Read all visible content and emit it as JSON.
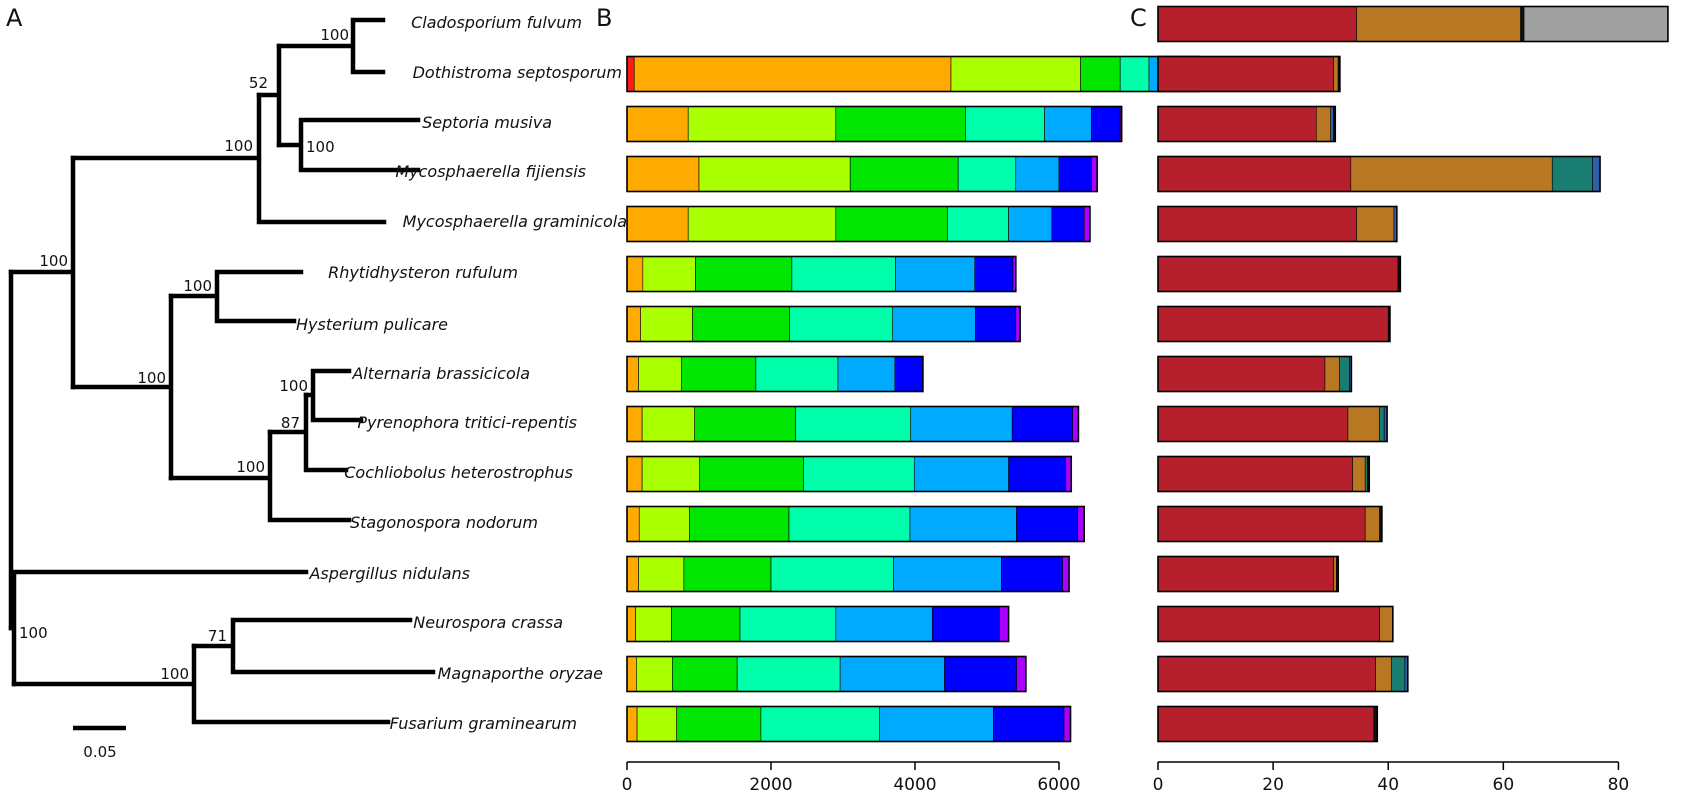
{
  "panels": {
    "a": "A",
    "b": "B",
    "c": "C"
  },
  "scale_bar": {
    "label": "0.05"
  },
  "species": [
    "Cladosporium fulvum",
    "Dothistroma septosporum",
    "Septoria musiva",
    "Mycosphaerella fijiensis",
    "Mycosphaerella graminicola",
    "Rhytidhysteron rufulum",
    "Hysterium pulicare",
    "Alternaria brassicicola",
    "Pyrenophora tritici-repentis",
    "Cochliobolus heterostrophus",
    "Stagonospora nodorum",
    "Aspergillus nidulans",
    "Neurospora crassa",
    "Magnaporthe oryzae",
    "Fusarium graminearum"
  ],
  "bootstrap_values": [
    "100",
    "52",
    "100",
    "100",
    "100",
    "100",
    "100",
    "100",
    "87",
    "100",
    "100",
    "71",
    "100"
  ],
  "chart_data": [
    {
      "type": "bar",
      "orientation": "horizontal",
      "stacked": true,
      "panel": "B",
      "categories": [
        "Cladosporium fulvum",
        "Dothistroma septosporum",
        "Septoria musiva",
        "Mycosphaerella fijiensis",
        "Mycosphaerella graminicola",
        "Rhytidhysteron rufulum",
        "Hysterium pulicare",
        "Alternaria brassicicola",
        "Pyrenophora tritici-repentis",
        "Cochliobolus heterostrophus",
        "Stagonospora nodorum",
        "Aspergillus nidulans",
        "Neurospora crassa",
        "Magnaporthe oryzae",
        "Fusarium graminearum"
      ],
      "series_colors": [
        "#ff1a1a",
        "#ffaa00",
        "#aaff00",
        "#00e600",
        "#00ffaa",
        "#00aaff",
        "#0000ff",
        "#aa00ff"
      ],
      "values": [
        null,
        [
          100,
          4400,
          1800,
          550,
          400,
          350,
          350,
          0
        ],
        [
          0,
          850,
          2050,
          1800,
          1100,
          650,
          400,
          20
        ],
        [
          0,
          1000,
          2100,
          1500,
          800,
          600,
          450,
          80
        ],
        [
          0,
          850,
          2050,
          1550,
          850,
          600,
          450,
          80
        ],
        [
          0,
          220,
          730,
          1340,
          1440,
          1100,
          530,
          40
        ],
        [
          0,
          190,
          720,
          1350,
          1430,
          1150,
          560,
          60
        ],
        [
          0,
          160,
          600,
          1030,
          1140,
          790,
          390,
          0
        ],
        [
          0,
          210,
          730,
          1400,
          1600,
          1410,
          840,
          80
        ],
        [
          0,
          210,
          800,
          1440,
          1540,
          1310,
          790,
          80
        ],
        [
          0,
          170,
          700,
          1380,
          1680,
          1480,
          850,
          90
        ],
        [
          0,
          160,
          630,
          1210,
          1700,
          1500,
          850,
          90
        ],
        [
          0,
          120,
          500,
          950,
          1330,
          1340,
          930,
          130
        ],
        [
          0,
          130,
          500,
          900,
          1430,
          1450,
          1000,
          130
        ],
        [
          0,
          140,
          550,
          1170,
          1650,
          1580,
          980,
          90
        ]
      ],
      "xlim": [
        0,
        7000
      ],
      "xticks": [
        "0",
        "2000",
        "4000",
        "6000"
      ]
    },
    {
      "type": "bar",
      "orientation": "horizontal",
      "stacked": true,
      "panel": "C",
      "categories": [
        "Cladosporium fulvum",
        "Dothistroma septosporum",
        "Septoria musiva",
        "Mycosphaerella fijiensis",
        "Mycosphaerella graminicola",
        "Rhytidhysteron rufulum",
        "Hysterium pulicare",
        "Alternaria brassicicola",
        "Pyrenophora tritici-repentis",
        "Cochliobolus heterostrophus",
        "Stagonospora nodorum",
        "Aspergillus nidulans",
        "Neurospora crassa",
        "Magnaporthe oryzae",
        "Fusarium graminearum"
      ],
      "series_colors": [
        "#b5202c",
        "#b87722",
        "#1a7d72",
        "#2e5fa8",
        "#111111",
        "#a0a0a0"
      ],
      "values": [
        [
          34.5,
          28.5,
          0,
          0,
          0.6,
          25.0
        ],
        [
          30.5,
          0.8,
          0,
          0,
          0.3,
          0
        ],
        [
          27.5,
          2.5,
          0,
          0.5,
          0.3,
          0
        ],
        [
          33.5,
          35.0,
          7.0,
          1.3,
          0,
          0
        ],
        [
          34.5,
          6.5,
          0,
          0.5,
          0,
          0
        ],
        [
          41.7,
          0,
          0,
          0,
          0.4,
          0
        ],
        [
          40.0,
          0,
          0,
          0,
          0.3,
          0
        ],
        [
          29.0,
          2.5,
          1.8,
          0.3,
          0,
          0
        ],
        [
          33.0,
          5.5,
          0.8,
          0.5,
          0,
          0
        ],
        [
          33.8,
          2.2,
          0.4,
          0,
          0.3,
          0
        ],
        [
          36.0,
          2.5,
          0,
          0,
          0.4,
          0
        ],
        [
          30.5,
          0.5,
          0,
          0,
          0.3,
          0
        ],
        [
          38.5,
          2.3,
          0,
          0,
          0,
          0
        ],
        [
          37.8,
          2.8,
          2.3,
          0.5,
          0,
          0
        ],
        [
          37.5,
          0,
          0,
          0,
          0.6,
          0
        ]
      ],
      "xlim": [
        0,
        90
      ],
      "xticks": [
        "0",
        "20",
        "40",
        "60",
        "80"
      ]
    }
  ]
}
